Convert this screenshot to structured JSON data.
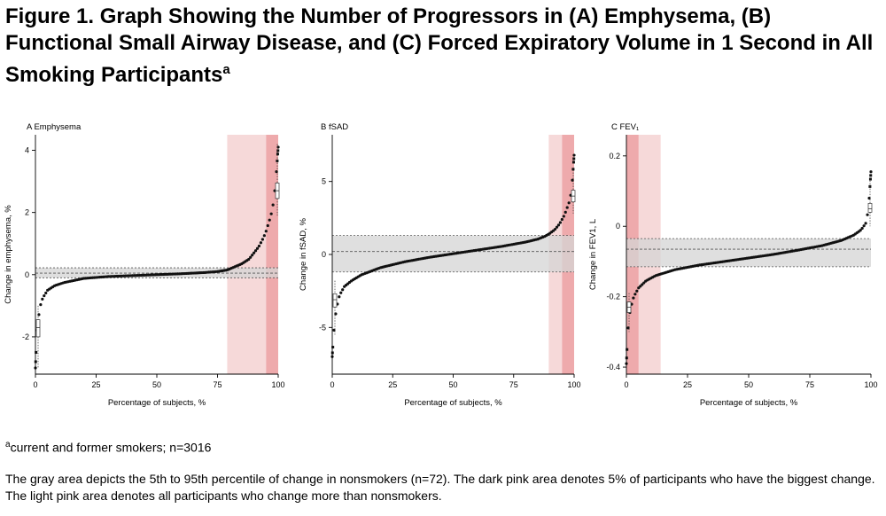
{
  "figure": {
    "title_main": "Figure 1. Graph Showing the Number of Progressors in (A) Emphysema, (B) Functional Small Airway Disease, and (C) Forced Expiratory Volume in 1 Second in All Smoking Participants",
    "title_sup": "a",
    "footnote_marker": "a",
    "footnote_text": "current and former smokers; n=3016",
    "caption": "The gray area depicts the 5th to 95th percentile of change in nonsmokers (n=72). The dark pink area denotes 5% of participants who have the biggest change. The light pink area denotes all participants who change more than nonsmokers."
  },
  "colors": {
    "gray_band": "#d4d4d4",
    "light_pink": "#f6d9d9",
    "dark_pink": "#eeaaac",
    "points": "#111111"
  },
  "chart_data": [
    {
      "type": "scatter",
      "title": "A Emphysema",
      "xlabel": "Percentage of subjects, %",
      "ylabel": "Change in emphysema, %",
      "xlim": [
        0,
        100
      ],
      "ylim": [
        -3.2,
        4.5
      ],
      "xticks": [
        0,
        25,
        50,
        75,
        100
      ],
      "yticks": [
        -2,
        0,
        2,
        4
      ],
      "nonsmoker_band": [
        -0.1,
        0.22
      ],
      "nonsmoker_median": 0.05,
      "light_pink_range": [
        79,
        95
      ],
      "dark_pink_range": [
        95,
        100
      ],
      "curve": [
        [
          0,
          -3.0
        ],
        [
          0.5,
          -2.0
        ],
        [
          1,
          -1.5
        ],
        [
          2,
          -1.0
        ],
        [
          3,
          -0.75
        ],
        [
          5,
          -0.5
        ],
        [
          8,
          -0.35
        ],
        [
          12,
          -0.25
        ],
        [
          20,
          -0.12
        ],
        [
          30,
          -0.06
        ],
        [
          40,
          -0.03
        ],
        [
          50,
          0.0
        ],
        [
          60,
          0.03
        ],
        [
          70,
          0.07
        ],
        [
          75,
          0.1
        ],
        [
          79,
          0.15
        ],
        [
          82,
          0.25
        ],
        [
          85,
          0.35
        ],
        [
          88,
          0.5
        ],
        [
          90,
          0.7
        ],
        [
          92,
          0.9
        ],
        [
          94,
          1.2
        ],
        [
          95,
          1.4
        ],
        [
          97,
          1.9
        ],
        [
          98,
          2.3
        ],
        [
          99,
          3.0
        ],
        [
          100,
          4.1
        ]
      ],
      "boxplot_side": "right",
      "boxplot": {
        "q1": -2.0,
        "median": -1.7,
        "q3": -1.45,
        "low": -3.0,
        "high": -1.0
      },
      "boxplot_right": {
        "q1": 2.45,
        "median": 2.7,
        "q3": 2.95,
        "low": 1.9,
        "high": 4.2
      }
    },
    {
      "type": "scatter",
      "title": "B fSAD",
      "xlabel": "Percentage of subjects, %",
      "ylabel": "Change in fSAD, %",
      "xlim": [
        0,
        100
      ],
      "ylim": [
        -8.2,
        8.2
      ],
      "xticks": [
        0,
        25,
        50,
        75,
        100
      ],
      "yticks": [
        -5,
        0,
        5
      ],
      "nonsmoker_band": [
        -1.2,
        1.3
      ],
      "nonsmoker_median": 0.2,
      "light_pink_range": [
        89.5,
        95
      ],
      "dark_pink_range": [
        95,
        100
      ],
      "curve": [
        [
          0,
          -7.0
        ],
        [
          0.5,
          -5.7
        ],
        [
          1,
          -4.5
        ],
        [
          2,
          -3.5
        ],
        [
          3,
          -2.8
        ],
        [
          5,
          -2.2
        ],
        [
          8,
          -1.8
        ],
        [
          12,
          -1.4
        ],
        [
          20,
          -0.9
        ],
        [
          30,
          -0.5
        ],
        [
          40,
          -0.2
        ],
        [
          50,
          0.05
        ],
        [
          60,
          0.3
        ],
        [
          70,
          0.55
        ],
        [
          80,
          0.85
        ],
        [
          85,
          1.05
        ],
        [
          88,
          1.25
        ],
        [
          90,
          1.45
        ],
        [
          92,
          1.7
        ],
        [
          94,
          2.1
        ],
        [
          96,
          2.7
        ],
        [
          98,
          3.6
        ],
        [
          99,
          4.4
        ],
        [
          100,
          6.8
        ]
      ],
      "boxplot_side": "left",
      "boxplot": {
        "q1": -3.6,
        "median": -3.1,
        "q3": -2.7,
        "low": -5.5,
        "high": -1.8
      },
      "boxplot_right": {
        "q1": 3.6,
        "median": 4.0,
        "q3": 4.4,
        "low": 2.8,
        "high": 5.8
      }
    },
    {
      "type": "scatter",
      "title": "C FEV₁",
      "xlabel": "Percentage of subjects, %",
      "ylabel": "Change in FEV1, L",
      "xlim": [
        0,
        100
      ],
      "ylim": [
        -0.42,
        0.26
      ],
      "xticks": [
        0,
        25,
        50,
        75,
        100
      ],
      "yticks": [
        -0.4,
        -0.2,
        0,
        0.2
      ],
      "nonsmoker_band": [
        -0.115,
        -0.035
      ],
      "nonsmoker_median": -0.065,
      "light_pink_range": [
        5,
        14
      ],
      "dark_pink_range": [
        0,
        5
      ],
      "curve": [
        [
          0,
          -0.39
        ],
        [
          0.5,
          -0.31
        ],
        [
          1,
          -0.26
        ],
        [
          2,
          -0.225
        ],
        [
          3,
          -0.2
        ],
        [
          5,
          -0.175
        ],
        [
          8,
          -0.155
        ],
        [
          12,
          -0.14
        ],
        [
          20,
          -0.123
        ],
        [
          30,
          -0.11
        ],
        [
          40,
          -0.1
        ],
        [
          50,
          -0.09
        ],
        [
          60,
          -0.08
        ],
        [
          70,
          -0.068
        ],
        [
          80,
          -0.055
        ],
        [
          88,
          -0.04
        ],
        [
          93,
          -0.025
        ],
        [
          96,
          -0.01
        ],
        [
          98,
          0.01
        ],
        [
          99,
          0.05
        ],
        [
          100,
          0.155
        ]
      ],
      "boxplot_side": "left",
      "boxplot": {
        "q1": -0.245,
        "median": -0.23,
        "q3": -0.215,
        "low": -0.3,
        "high": -0.19
      },
      "boxplot_right": {
        "q1": 0.04,
        "median": 0.05,
        "q3": 0.065,
        "low": 0.0,
        "high": 0.13
      }
    }
  ]
}
